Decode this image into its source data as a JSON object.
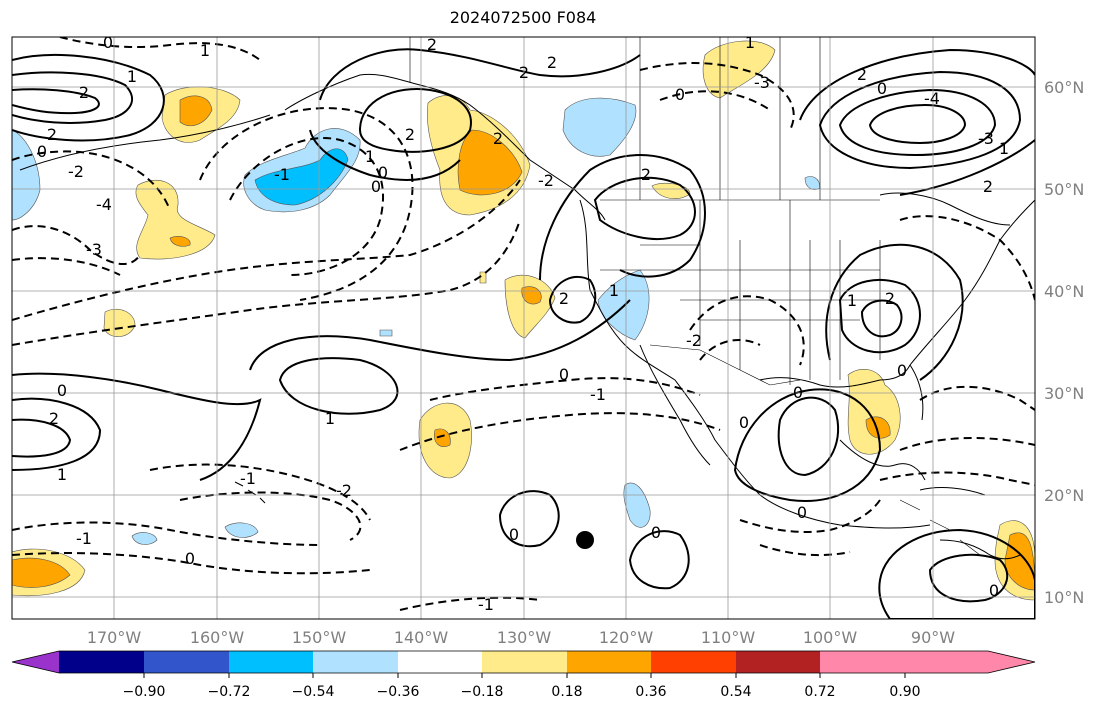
{
  "title": "2024072500 F084",
  "lat_labels": [
    "60°N",
    "50°N",
    "40°N",
    "30°N",
    "20°N",
    "10°N"
  ],
  "lon_labels": [
    "170°W",
    "160°W",
    "150°W",
    "140°W",
    "130°W",
    "120°W",
    "110°W",
    "100°W",
    "90°W"
  ],
  "colorbar": {
    "labels": [
      "−0.90",
      "−0.72",
      "−0.54",
      "−0.36",
      "−0.18",
      "0.18",
      "0.36",
      "0.54",
      "0.72",
      "0.90"
    ],
    "colors": [
      "#9933cc",
      "#00008b",
      "#3355cc",
      "#00bfff",
      "#b0e2ff",
      "#ffffff",
      "#ffeb8a",
      "#ffa500",
      "#ff4000",
      "#b22222",
      "#ff88aa"
    ]
  },
  "contour_labels": [
    "0",
    "1",
    "2",
    "-1",
    "-2",
    "-3",
    "-4"
  ],
  "fill_colors": {
    "pos_light": "#ffeb8a",
    "pos_mid": "#ffa500",
    "neg_light": "#b0e2ff",
    "neg_mid": "#00bfff"
  }
}
